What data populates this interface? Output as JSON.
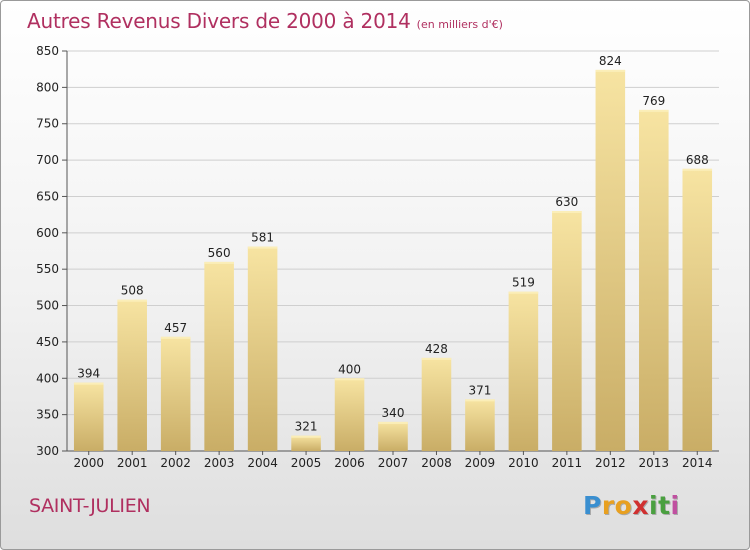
{
  "title": "Autres Revenus Divers de 2000 à 2014",
  "subtitle": "(en milliers d'€)",
  "commune": "SAINT-JULIEN",
  "logo": {
    "letters": [
      "P",
      "r",
      "o",
      "x",
      "i",
      "t",
      "i"
    ],
    "colors": [
      "#3a8fd0",
      "#e8a020",
      "#e8a020",
      "#d03030",
      "#4aa040",
      "#4aa040",
      "#c050a0"
    ]
  },
  "colors": {
    "title": "#b03060",
    "bar_light": "#f7e4a2",
    "bar_dark": "#c9ad66",
    "grid": "#cfcfcf"
  },
  "chart_data": {
    "type": "bar",
    "title": "Autres Revenus Divers de 2000 à 2014",
    "subtitle": "(en milliers d'€)",
    "xlabel": "",
    "ylabel": "",
    "categories": [
      "2000",
      "2001",
      "2002",
      "2003",
      "2004",
      "2005",
      "2006",
      "2007",
      "2008",
      "2009",
      "2010",
      "2011",
      "2012",
      "2013",
      "2014"
    ],
    "values": [
      394,
      508,
      457,
      560,
      581,
      321,
      400,
      340,
      428,
      371,
      519,
      630,
      824,
      769,
      688
    ],
    "ylim": [
      300,
      850
    ],
    "yticks": [
      300,
      350,
      400,
      450,
      500,
      550,
      600,
      650,
      700,
      750,
      800,
      850
    ],
    "grid": true
  }
}
